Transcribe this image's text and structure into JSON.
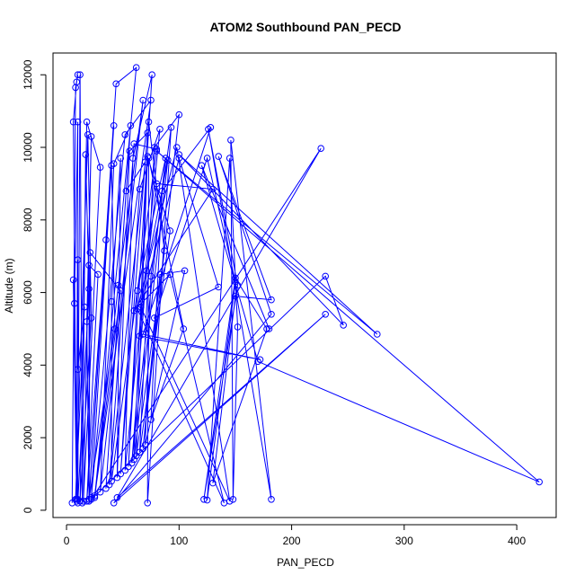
{
  "chart_data": {
    "type": "line",
    "title": "ATOM2 Southbound PAN_PECD",
    "xlabel": "PAN_PECD",
    "ylabel": "Altitude (m)",
    "xlim": [
      -12,
      435
    ],
    "ylim": [
      -200,
      12600
    ],
    "x_ticks": [
      0,
      100,
      200,
      300,
      400
    ],
    "y_ticks": [
      0,
      2000,
      4000,
      6000,
      8000,
      10000,
      12000
    ],
    "grid": false,
    "color": "#0000ff",
    "series": [
      {
        "values": [
          [
            5,
            200
          ],
          [
            8,
            11650
          ],
          [
            10,
            12000
          ],
          [
            9,
            11800
          ],
          [
            6,
            10700
          ],
          [
            9,
            300
          ],
          [
            10,
            10700
          ],
          [
            7,
            5700
          ],
          [
            10,
            300
          ],
          [
            12,
            12000
          ],
          [
            14,
            200
          ],
          [
            17,
            9800
          ],
          [
            20,
            6100
          ],
          [
            10,
            200
          ],
          [
            6,
            6350
          ],
          [
            9,
            250
          ],
          [
            10,
            6900
          ],
          [
            10,
            3880
          ],
          [
            16,
            5600
          ],
          [
            8,
            300
          ],
          [
            19,
            10350
          ],
          [
            22,
            5300
          ],
          [
            12,
            250
          ],
          [
            18,
            10700
          ],
          [
            30,
            9450
          ],
          [
            15,
            250
          ],
          [
            22,
            10300
          ],
          [
            18,
            5200
          ],
          [
            20,
            300
          ],
          [
            20,
            6750
          ],
          [
            28,
            6500
          ],
          [
            18,
            250
          ],
          [
            35,
            7450
          ],
          [
            42,
            10600
          ],
          [
            20,
            250
          ],
          [
            21,
            7100
          ],
          [
            48,
            6050
          ],
          [
            25,
            350
          ],
          [
            62,
            12200
          ],
          [
            44,
            11750
          ],
          [
            20,
            300
          ],
          [
            43,
            5000
          ],
          [
            40,
            9500
          ],
          [
            22,
            350
          ],
          [
            52,
            10350
          ],
          [
            75,
            11300
          ],
          [
            25,
            400
          ],
          [
            46,
            6200
          ],
          [
            68,
            11300
          ],
          [
            30,
            500
          ],
          [
            42,
            9550
          ],
          [
            57,
            10600
          ],
          [
            35,
            600
          ],
          [
            53,
            8800
          ],
          [
            70,
            9600
          ],
          [
            38,
            700
          ],
          [
            60,
            10100
          ],
          [
            80,
            9950
          ],
          [
            40,
            800
          ],
          [
            40,
            5750
          ],
          [
            48,
            9700
          ],
          [
            45,
            900
          ],
          [
            56,
            9900
          ],
          [
            72,
            10400
          ],
          [
            48,
            1000
          ],
          [
            65,
            8850
          ],
          [
            83,
            10500
          ],
          [
            52,
            1100
          ],
          [
            59,
            9700
          ],
          [
            76,
            12000
          ],
          [
            55,
            1200
          ],
          [
            63,
            6050
          ],
          [
            88,
            9700
          ],
          [
            58,
            1300
          ],
          [
            71,
            6600
          ],
          [
            90,
            9650
          ],
          [
            60,
            1400
          ],
          [
            73,
            10700
          ],
          [
            87,
            7150
          ],
          [
            62,
            1500
          ],
          [
            72,
            9750
          ],
          [
            92,
            7700
          ],
          [
            65,
            1600
          ],
          [
            78,
            10000
          ],
          [
            100,
            10900
          ],
          [
            68,
            1700
          ],
          [
            83,
            6500
          ],
          [
            105,
            6600
          ],
          [
            70,
            1800
          ],
          [
            75,
            6450
          ],
          [
            93,
            10550
          ],
          [
            72,
            200
          ],
          [
            73,
            9700
          ],
          [
            104,
            5000
          ],
          [
            75,
            2500
          ],
          [
            85,
            8800
          ],
          [
            128,
            10550
          ],
          [
            68,
            4850
          ],
          [
            172,
            4150
          ],
          [
            65,
            4800
          ],
          [
            80,
            9000
          ],
          [
            130,
            8850
          ],
          [
            60,
            5500
          ],
          [
            92,
            6500
          ],
          [
            140,
            200
          ],
          [
            63,
            5550
          ],
          [
            98,
            10000
          ],
          [
            145,
            250
          ],
          [
            66,
            5600
          ],
          [
            100,
            9700
          ],
          [
            135,
            6150
          ],
          [
            78,
            5300
          ],
          [
            125,
            9700
          ],
          [
            150,
            6300
          ],
          [
            125,
            280
          ],
          [
            145,
            9700
          ],
          [
            152,
            5050
          ],
          [
            148,
            300
          ],
          [
            146,
            10200
          ],
          [
            182,
            300
          ],
          [
            126,
            10500
          ],
          [
            152,
            6200
          ],
          [
            122,
            300
          ],
          [
            150,
            6400
          ],
          [
            178,
            5000
          ],
          [
            130,
            750
          ],
          [
            150,
            5900
          ],
          [
            182,
            5800
          ],
          [
            135,
            9750
          ],
          [
            182,
            5400
          ],
          [
            42,
            200
          ],
          [
            230,
            5400
          ],
          [
            45,
            350
          ],
          [
            226,
            9970
          ],
          [
            22,
            300
          ],
          [
            230,
            6450
          ],
          [
            246,
            5100
          ],
          [
            100,
            9800
          ],
          [
            276,
            4850
          ],
          [
            80,
            9900
          ],
          [
            420,
            780
          ],
          [
            170,
            4100
          ],
          [
            120,
            9500
          ],
          [
            180,
            5000
          ]
        ]
      }
    ]
  }
}
